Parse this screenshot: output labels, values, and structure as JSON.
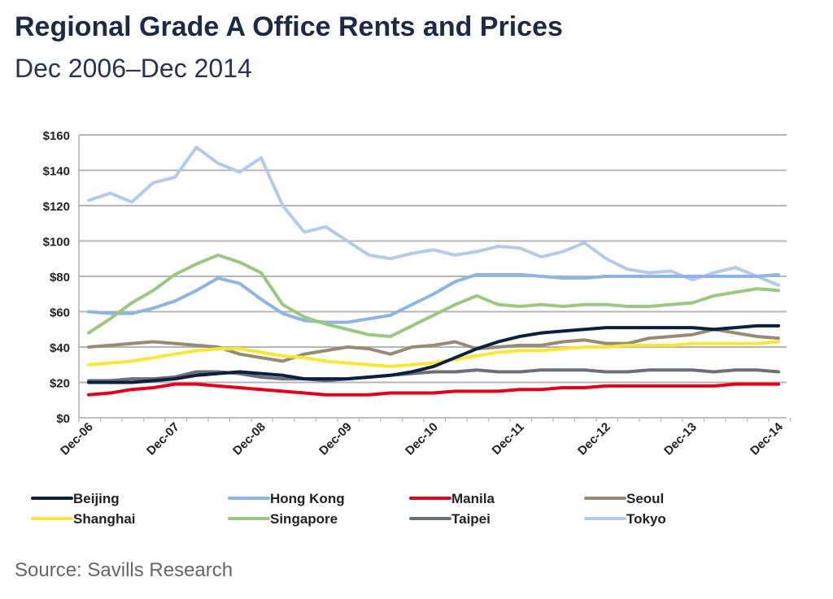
{
  "title": "Regional Grade A Office Rents and Prices",
  "subtitle": "Dec 2006–Dec 2014",
  "source": "Source: Savills Research",
  "chart_data": {
    "type": "line",
    "title": "Regional Grade A Office Rents and Prices",
    "subtitle": "Dec 2006–Dec 2014",
    "xlabel": "",
    "ylabel": "",
    "ylim": [
      0,
      160
    ],
    "yticks": [
      "$0",
      "$20",
      "$40",
      "$60",
      "$80",
      "$100",
      "$120",
      "$140",
      "$160"
    ],
    "ytick_values": [
      0,
      20,
      40,
      60,
      80,
      100,
      120,
      140,
      160
    ],
    "xticks": [
      "Dec-06",
      "Dec-07",
      "Dec-08",
      "Dec-09",
      "Dec-10",
      "Dec-11",
      "Dec-12",
      "Dec-13",
      "Dec-14"
    ],
    "x_frequency": "quarterly",
    "grid": true,
    "legend": "bottom",
    "series": [
      {
        "name": "Beijing",
        "color": "#0b1f3f",
        "values": [
          20,
          20,
          20,
          21,
          22,
          24,
          25,
          26,
          25,
          24,
          22,
          22,
          22,
          23,
          24,
          26,
          29,
          34,
          39,
          43,
          46,
          48,
          49,
          50,
          51,
          51,
          51,
          51,
          51,
          50,
          51,
          52,
          52
        ]
      },
      {
        "name": "Hong Kong",
        "color": "#8fb4e0",
        "values": [
          60,
          59,
          59,
          62,
          66,
          72,
          79,
          76,
          67,
          59,
          55,
          54,
          54,
          56,
          58,
          64,
          70,
          77,
          81,
          81,
          81,
          80,
          79,
          79,
          80,
          80,
          80,
          80,
          80,
          80,
          80,
          80,
          81
        ]
      },
      {
        "name": "Manila",
        "color": "#e2001a",
        "values": [
          13,
          14,
          16,
          17,
          19,
          19,
          18,
          17,
          16,
          15,
          14,
          13,
          13,
          13,
          14,
          14,
          14,
          15,
          15,
          15,
          16,
          16,
          17,
          17,
          18,
          18,
          18,
          18,
          18,
          18,
          19,
          19,
          19
        ]
      },
      {
        "name": "Seoul",
        "color": "#978b73",
        "values": [
          40,
          41,
          42,
          43,
          42,
          41,
          40,
          36,
          34,
          32,
          36,
          38,
          40,
          39,
          36,
          40,
          41,
          43,
          39,
          40,
          41,
          41,
          43,
          44,
          42,
          42,
          45,
          46,
          47,
          50,
          48,
          46,
          45
        ]
      },
      {
        "name": "Shanghai",
        "color": "#f7e838",
        "values": [
          30,
          31,
          32,
          34,
          36,
          38,
          39,
          39,
          37,
          35,
          34,
          32,
          31,
          30,
          29,
          30,
          31,
          33,
          35,
          37,
          38,
          38,
          39,
          40,
          40,
          41,
          41,
          41,
          42,
          42,
          42,
          42,
          43
        ]
      },
      {
        "name": "Singapore",
        "color": "#9cc783",
        "values": [
          48,
          56,
          65,
          72,
          81,
          87,
          92,
          88,
          82,
          64,
          57,
          53,
          50,
          47,
          46,
          52,
          58,
          64,
          69,
          64,
          63,
          64,
          63,
          64,
          64,
          63,
          63,
          64,
          65,
          69,
          71,
          73,
          72
        ]
      },
      {
        "name": "Taipei",
        "color": "#6d6f78",
        "values": [
          21,
          21,
          22,
          22,
          23,
          26,
          26,
          25,
          23,
          22,
          22,
          21,
          22,
          23,
          24,
          25,
          26,
          26,
          27,
          26,
          26,
          27,
          27,
          27,
          26,
          26,
          27,
          27,
          27,
          26,
          27,
          27,
          26
        ]
      },
      {
        "name": "Tokyo",
        "color": "#b3cbe8",
        "values": [
          123,
          127,
          122,
          133,
          136,
          153,
          144,
          139,
          147,
          120,
          105,
          108,
          100,
          92,
          90,
          93,
          95,
          92,
          94,
          97,
          96,
          91,
          94,
          99,
          90,
          84,
          82,
          83,
          78,
          82,
          85,
          80,
          75
        ]
      }
    ]
  }
}
